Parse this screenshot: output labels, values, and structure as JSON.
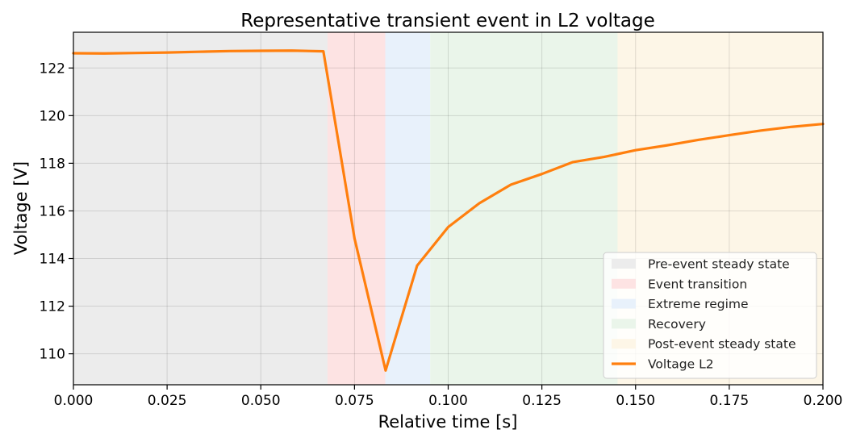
{
  "chart_data": {
    "type": "line",
    "title": "Representative transient event in L2 voltage",
    "xlabel": "Relative time [s]",
    "ylabel": "Voltage [V]",
    "xlim": [
      0.0,
      0.2
    ],
    "ylim": [
      108.7,
      123.5
    ],
    "x_ticks": [
      "0.000",
      "0.025",
      "0.050",
      "0.075",
      "0.100",
      "0.125",
      "0.150",
      "0.175",
      "0.200"
    ],
    "y_ticks": [
      "110",
      "112",
      "114",
      "116",
      "118",
      "120",
      "122"
    ],
    "grid": true,
    "legend_position": "lower-right",
    "regions": [
      {
        "name": "Pre-event steady state",
        "x_start": 0.0,
        "x_end": 0.0678,
        "color": "#ececec"
      },
      {
        "name": "Event transition",
        "x_start": 0.0678,
        "x_end": 0.0832,
        "color": "#fde3e3"
      },
      {
        "name": "Extreme regime",
        "x_start": 0.0832,
        "x_end": 0.0952,
        "color": "#e8f1fb"
      },
      {
        "name": "Recovery",
        "x_start": 0.0952,
        "x_end": 0.1452,
        "color": "#eaf5ea"
      },
      {
        "name": "Post-event steady state",
        "x_start": 0.1452,
        "x_end": 0.2,
        "color": "#fdf6e7"
      }
    ],
    "series": [
      {
        "name": "Voltage L2",
        "color": "#ff7f0e",
        "x": [
          0.0,
          0.0083,
          0.0167,
          0.025,
          0.0333,
          0.0417,
          0.05,
          0.0583,
          0.0667,
          0.075,
          0.0833,
          0.0917,
          0.1,
          0.1083,
          0.1167,
          0.125,
          0.1333,
          0.1417,
          0.15,
          0.1583,
          0.1667,
          0.175,
          0.1833,
          0.1917,
          0.2
        ],
        "values": [
          122.62,
          122.61,
          122.63,
          122.65,
          122.68,
          122.71,
          122.72,
          122.73,
          122.7,
          114.85,
          109.3,
          113.7,
          115.32,
          116.32,
          117.1,
          117.55,
          118.05,
          118.27,
          118.55,
          118.75,
          118.98,
          119.18,
          119.37,
          119.53,
          119.65
        ]
      }
    ]
  }
}
